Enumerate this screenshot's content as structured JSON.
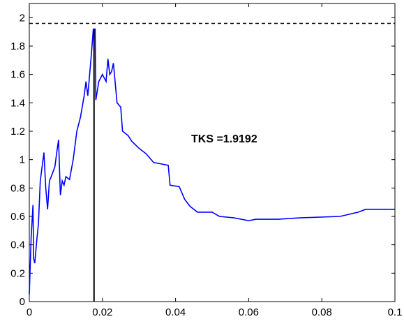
{
  "chart_data": {
    "type": "line",
    "annotation": "TKS =1.9192",
    "x": [
      0,
      0.0005,
      0.001,
      0.0012,
      0.0015,
      0.002,
      0.0025,
      0.003,
      0.0035,
      0.004,
      0.0045,
      0.005,
      0.0055,
      0.006,
      0.007,
      0.0075,
      0.008,
      0.0085,
      0.009,
      0.0095,
      0.01,
      0.011,
      0.012,
      0.013,
      0.014,
      0.015,
      0.0155,
      0.016,
      0.0165,
      0.017,
      0.0175,
      0.018,
      0.0182,
      0.019,
      0.02,
      0.021,
      0.0215,
      0.022,
      0.0225,
      0.023,
      0.024,
      0.025,
      0.0255,
      0.027,
      0.028,
      0.03,
      0.032,
      0.034,
      0.036,
      0.038,
      0.0385,
      0.041,
      0.0425,
      0.044,
      0.046,
      0.05,
      0.052,
      0.056,
      0.06,
      0.062,
      0.068,
      0.074,
      0.085,
      0.09,
      0.092,
      0.1
    ],
    "values": [
      0.05,
      0.45,
      0.68,
      0.3,
      0.27,
      0.42,
      0.55,
      0.85,
      0.95,
      1.05,
      0.8,
      0.65,
      0.85,
      0.88,
      0.95,
      1.05,
      1.14,
      0.75,
      0.85,
      0.82,
      0.88,
      0.86,
      1.0,
      1.2,
      1.3,
      1.45,
      1.55,
      1.45,
      1.6,
      1.75,
      1.9192,
      1.92,
      1.42,
      1.55,
      1.6,
      1.55,
      1.71,
      1.6,
      1.62,
      1.68,
      1.4,
      1.37,
      1.2,
      1.17,
      1.13,
      1.08,
      1.04,
      0.98,
      0.97,
      0.96,
      0.82,
      0.81,
      0.72,
      0.67,
      0.63,
      0.63,
      0.6,
      0.59,
      0.57,
      0.58,
      0.58,
      0.59,
      0.6,
      0.63,
      0.65,
      0.65
    ],
    "color": "#0000ff",
    "hline": 1.96,
    "vline": {
      "x": 0.0177,
      "y": 1.9192
    },
    "xlim": [
      0,
      0.1
    ],
    "xticks": [
      0,
      0.02,
      0.04,
      0.06,
      0.08,
      0.1
    ],
    "ylim": [
      0,
      2.1
    ],
    "yticks": [
      0,
      0.2,
      0.4,
      0.6,
      0.8,
      1,
      1.2,
      1.4,
      1.6,
      1.8,
      2
    ]
  }
}
